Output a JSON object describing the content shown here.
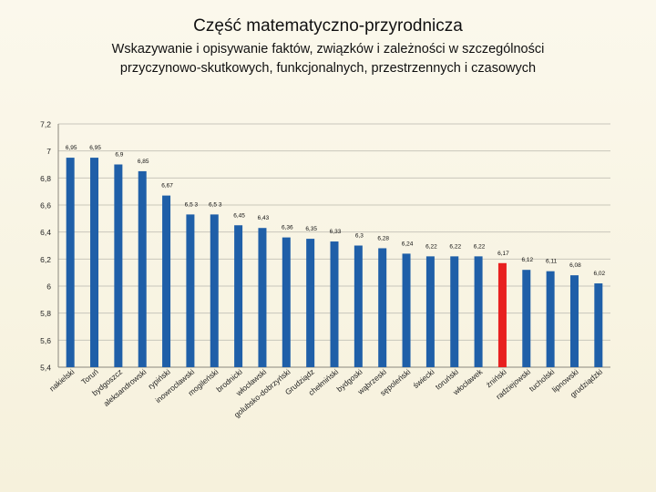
{
  "chart_data": {
    "type": "bar",
    "title": "Część matematyczno-przyrodnicza",
    "subtitle_line1": "Wskazywanie i opisywanie faktów, związków i zależności w szczególności",
    "subtitle_line2": "przyczynowo-skutkowych, funkcjonalnych, przestrzennych i czasowych",
    "xlabel": "",
    "ylabel": "",
    "ylim": [
      5.4,
      7.2
    ],
    "yticks": [
      "7,2",
      "7",
      "6,8",
      "6,6",
      "6,4",
      "6,2",
      "6",
      "5,8",
      "5,6",
      "5,4"
    ],
    "categories": [
      "nakielski",
      "Toruń",
      "bydgoszcz",
      "aleksandrowski",
      "rypiński",
      "inowrocławski",
      "mogileński",
      "brodnicki",
      "włocławski",
      "golubsko-dobrzyński",
      "Grudziądz",
      "chełmiński",
      "bydgoski",
      "wąbrzeski",
      "sępoleński",
      "świecki",
      "toruński",
      "włocławek",
      "żniński",
      "radziejowski",
      "tucholski",
      "lipnowski",
      "grudziądzki"
    ],
    "value_labels": [
      "6,95",
      "6,95",
      "6,9",
      "6,85",
      "6,67",
      "6,5 3",
      "6,5 3",
      "6,45",
      "6,43",
      "6,36",
      "6,35",
      "6,33",
      "6,3",
      "6,28",
      "6,24",
      "6,22",
      "6,22",
      "6,22",
      "6,17",
      "6,12",
      "6,11",
      "6,08",
      "6,02"
    ],
    "values": [
      6.95,
      6.95,
      6.9,
      6.85,
      6.67,
      6.53,
      6.53,
      6.45,
      6.43,
      6.36,
      6.35,
      6.33,
      6.3,
      6.28,
      6.24,
      6.22,
      6.22,
      6.22,
      6.17,
      6.12,
      6.11,
      6.08,
      6.02
    ],
    "highlight_index": 18,
    "bar_color": "#1f5fa8",
    "highlight_color": "#e8201f",
    "grid": true,
    "legend": "none"
  }
}
